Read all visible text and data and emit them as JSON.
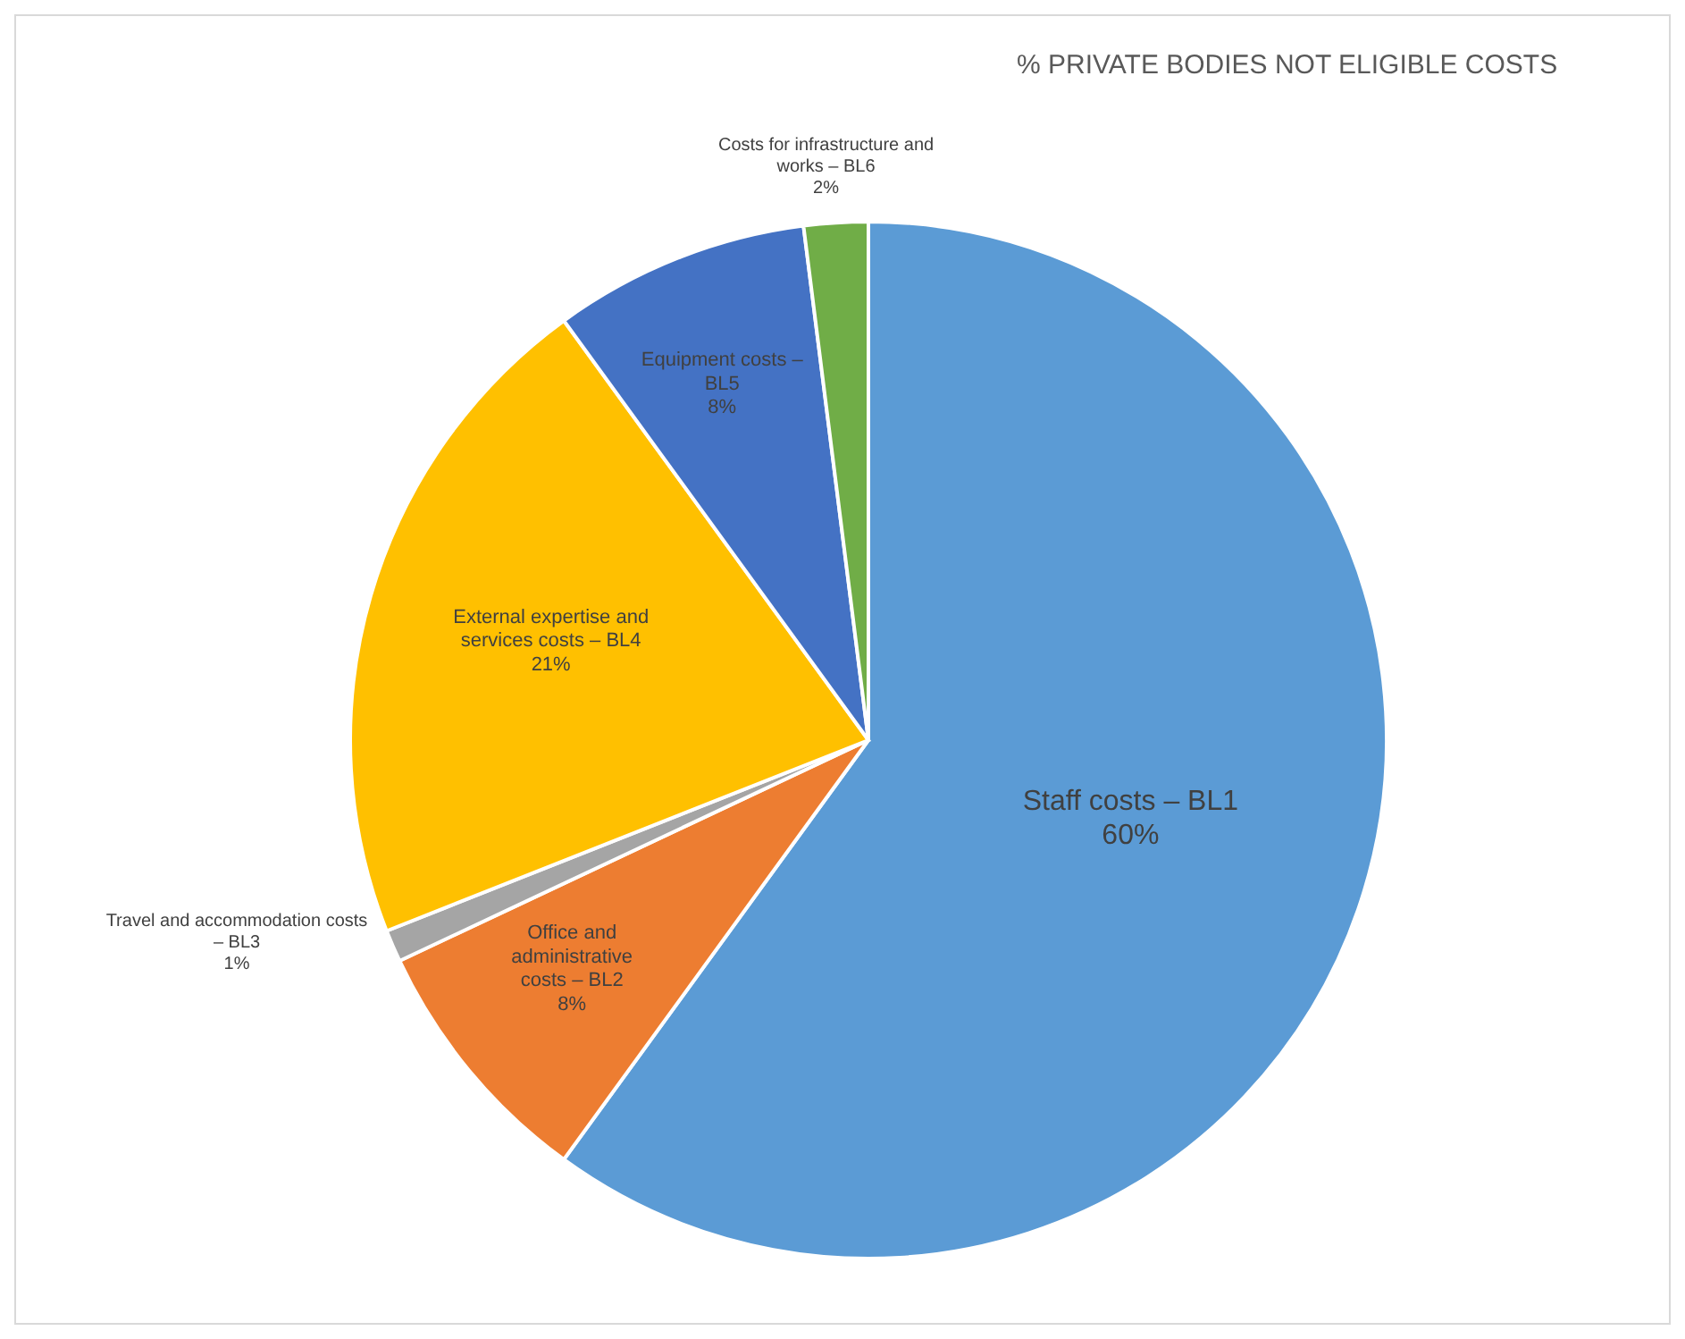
{
  "chart_data": {
    "type": "pie",
    "title": "% PRIVATE BODIES NOT ELIGIBLE COSTS",
    "categories": [
      "Staff costs – BL1",
      "Office and administrative costs – BL2",
      "Travel and accommodation costs – BL3",
      "External expertise and services costs – BL4",
      "Equipment costs – BL5",
      "Costs for infrastructure and works – BL6"
    ],
    "values": [
      60,
      8,
      1,
      21,
      8,
      2
    ],
    "value_labels": [
      "60%",
      "8%",
      "1%",
      "21%",
      "8%",
      "2%"
    ],
    "colors": [
      "#5b9bd5",
      "#ed7d31",
      "#a5a5a5",
      "#ffc000",
      "#4472c4",
      "#70ad47"
    ],
    "legend": false
  }
}
